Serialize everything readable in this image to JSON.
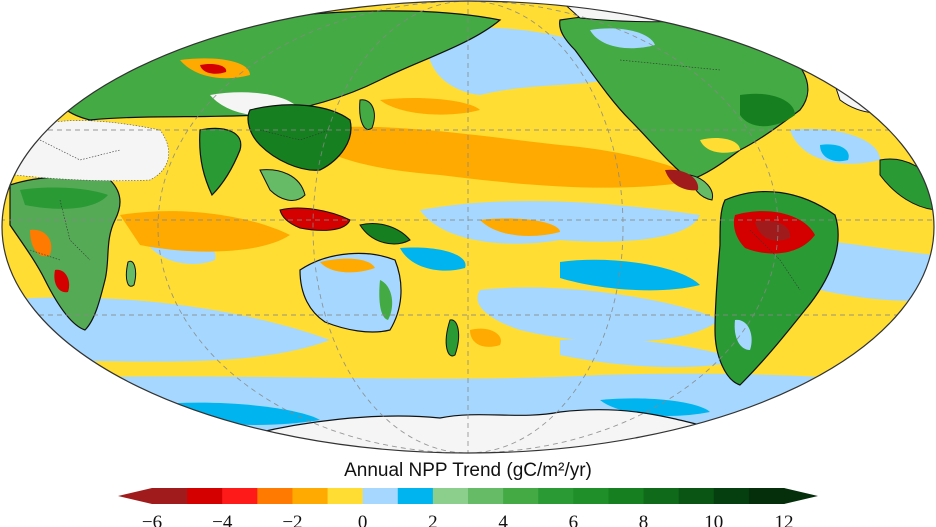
{
  "colorbar": {
    "title": "Annual NPP Trend (gC/m²/yr)",
    "tick_labels": [
      "−6",
      "−4",
      "−2",
      "0",
      "2",
      "4",
      "6",
      "8",
      "10",
      "12"
    ],
    "range": [
      -6,
      12
    ],
    "bins": [
      {
        "from": -6,
        "to": -5,
        "color": "#a01c1c"
      },
      {
        "from": -5,
        "to": -4,
        "color": "#d40000"
      },
      {
        "from": -4,
        "to": -3,
        "color": "#ff1a1a"
      },
      {
        "from": -3,
        "to": -2,
        "color": "#ff7a00"
      },
      {
        "from": -2,
        "to": -1,
        "color": "#ffaa00"
      },
      {
        "from": -1,
        "to": 0,
        "color": "#ffdd33"
      },
      {
        "from": 0,
        "to": 1,
        "color": "#a6d8ff"
      },
      {
        "from": 1,
        "to": 2,
        "color": "#00b4f0"
      },
      {
        "from": 2,
        "to": 3,
        "color": "#8ccf8c"
      },
      {
        "from": 3,
        "to": 4,
        "color": "#66bb66"
      },
      {
        "from": 4,
        "to": 5,
        "color": "#44aa44"
      },
      {
        "from": 5,
        "to": 6,
        "color": "#2a9a35"
      },
      {
        "from": 6,
        "to": 7,
        "color": "#1f8f2a"
      },
      {
        "from": 7,
        "to": 8,
        "color": "#168020"
      },
      {
        "from": 8,
        "to": 9,
        "color": "#0f6b1a"
      },
      {
        "from": 9,
        "to": 10,
        "color": "#0a5514"
      },
      {
        "from": 10,
        "to": 11,
        "color": "#063f0f"
      },
      {
        "from": 11,
        "to": 12,
        "color": "#052e0b"
      }
    ],
    "extend": "both"
  },
  "map": {
    "projection": "mollweide",
    "central_meridian": "Pacific-centered",
    "ocean_base_color": "#ffdd33",
    "no_data_color": "#ffffff",
    "gridlines": "dashed gray"
  }
}
